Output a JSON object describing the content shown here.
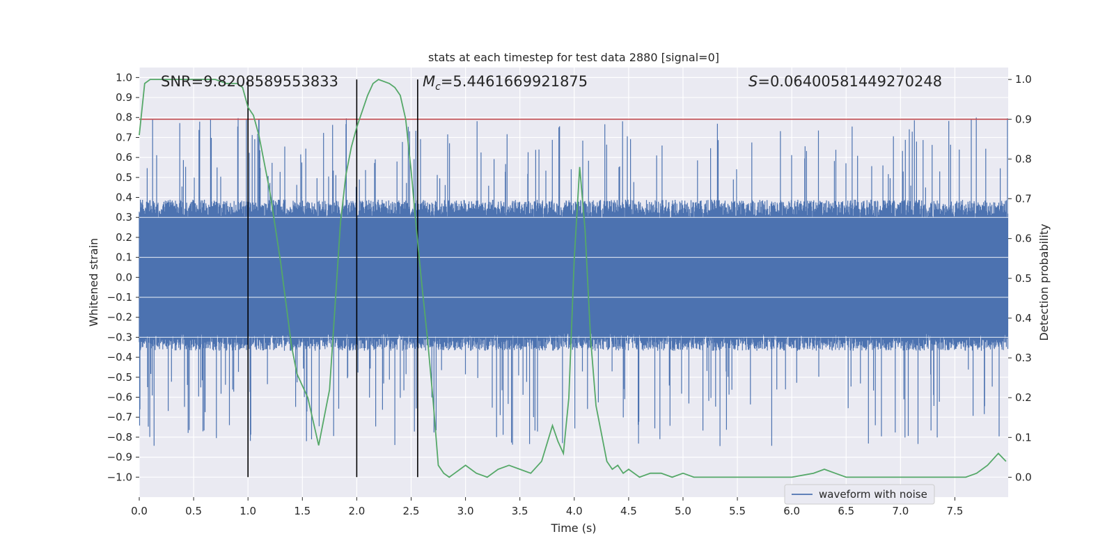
{
  "chart_data": {
    "type": "line",
    "title": "stats at each timestep for test data 2880 [signal=0]",
    "xlabel": "Time (s)",
    "ylabel_left": "Whitened strain",
    "ylabel_right": "Detection probability",
    "xlim": [
      0.0,
      7.99
    ],
    "ylim_left": [
      -1.1,
      1.05
    ],
    "ylim_right": [
      -0.05,
      1.03
    ],
    "x_ticks": [
      "0.0",
      "0.5",
      "1.0",
      "1.5",
      "2.0",
      "2.5",
      "3.0",
      "3.5",
      "4.0",
      "4.5",
      "5.0",
      "5.5",
      "6.0",
      "6.5",
      "7.0",
      "7.5"
    ],
    "y_ticks_left": [
      "1.0",
      "0.9",
      "0.8",
      "0.7",
      "0.6",
      "0.5",
      "0.4",
      "0.3",
      "0.2",
      "0.1",
      "0.0",
      "−0.1",
      "−0.2",
      "−0.3",
      "−0.4",
      "−0.5",
      "−0.6",
      "−0.7",
      "−0.8",
      "−0.9",
      "−1.0"
    ],
    "y_ticks_right": [
      "1.0",
      "0.9",
      "0.8",
      "0.7",
      "0.6",
      "0.5",
      "0.4",
      "0.3",
      "0.2",
      "0.1",
      "0.0"
    ],
    "grid": true,
    "annotations": {
      "snr": "SNR=9.8208589553833",
      "mc_symbol": "M",
      "mc_sub": "c",
      "mc_value": "=5.4461669921875",
      "s_symbol": "S",
      "s_value": "=0.06400581449270248"
    },
    "legend": {
      "placement": "lower-right",
      "entries": [
        "waveform with noise"
      ]
    },
    "threshold": {
      "axis": "right",
      "value": 0.9
    },
    "vertical_lines": [
      1.0,
      2.0,
      2.56
    ],
    "waveform": {
      "name": "waveform with noise",
      "color": "#4c72b0",
      "typical_range": [
        -0.35,
        0.37
      ]
    },
    "detection_probability": {
      "color": "#55a868",
      "x": [
        0.0,
        0.05,
        0.1,
        0.2,
        0.3,
        0.4,
        0.5,
        0.6,
        0.7,
        0.8,
        0.9,
        0.95,
        1.0,
        1.05,
        1.1,
        1.2,
        1.3,
        1.4,
        1.45,
        1.55,
        1.65,
        1.75,
        1.8,
        1.85,
        1.9,
        1.95,
        2.0,
        2.05,
        2.1,
        2.15,
        2.2,
        2.3,
        2.35,
        2.4,
        2.45,
        2.5,
        2.55,
        2.6,
        2.65,
        2.7,
        2.75,
        2.8,
        2.85,
        2.9,
        3.0,
        3.1,
        3.2,
        3.3,
        3.4,
        3.5,
        3.6,
        3.7,
        3.8,
        3.85,
        3.9,
        3.95,
        4.0,
        4.05,
        4.1,
        4.15,
        4.2,
        4.3,
        4.35,
        4.4,
        4.45,
        4.5,
        4.6,
        4.7,
        4.8,
        4.9,
        5.0,
        5.1,
        5.2,
        5.4,
        5.6,
        5.8,
        6.0,
        6.2,
        6.3,
        6.4,
        6.5,
        6.7,
        6.9,
        7.1,
        7.3,
        7.5,
        7.6,
        7.7,
        7.8,
        7.9,
        7.97
      ],
      "y": [
        0.86,
        0.99,
        1.0,
        1.0,
        1.0,
        1.0,
        1.0,
        1.0,
        1.0,
        0.99,
        0.99,
        0.98,
        0.93,
        0.91,
        0.86,
        0.72,
        0.54,
        0.33,
        0.26,
        0.2,
        0.08,
        0.22,
        0.43,
        0.64,
        0.76,
        0.83,
        0.88,
        0.92,
        0.96,
        0.99,
        1.0,
        0.99,
        0.98,
        0.96,
        0.9,
        0.77,
        0.62,
        0.48,
        0.35,
        0.2,
        0.03,
        0.01,
        0.0,
        0.01,
        0.03,
        0.01,
        0.0,
        0.02,
        0.03,
        0.02,
        0.01,
        0.04,
        0.13,
        0.09,
        0.06,
        0.2,
        0.55,
        0.78,
        0.62,
        0.35,
        0.18,
        0.04,
        0.02,
        0.03,
        0.01,
        0.02,
        0.0,
        0.01,
        0.01,
        0.0,
        0.01,
        0.0,
        0.0,
        0.0,
        0.0,
        0.0,
        0.0,
        0.01,
        0.02,
        0.01,
        0.0,
        0.0,
        0.0,
        0.0,
        0.0,
        0.0,
        0.0,
        0.01,
        0.03,
        0.06,
        0.04
      ]
    }
  }
}
